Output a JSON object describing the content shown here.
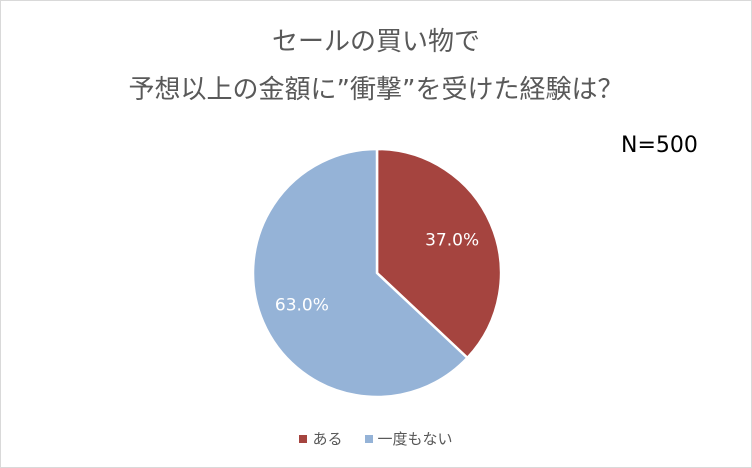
{
  "chart_data": {
    "type": "pie",
    "title_lines": [
      "セールの買い物で",
      "予想以上の金額に”衝撃”を受けた経験は？"
    ],
    "note": "N=500",
    "slices": [
      {
        "label": "ある",
        "value": 37.0,
        "display": "37.0%",
        "color": "#a5443f"
      },
      {
        "label": "一度もない",
        "value": 63.0,
        "display": "63.0%",
        "color": "#95b3d7"
      }
    ],
    "start_angle_deg": 0,
    "direction": "clockwise",
    "legend_position": "bottom"
  }
}
